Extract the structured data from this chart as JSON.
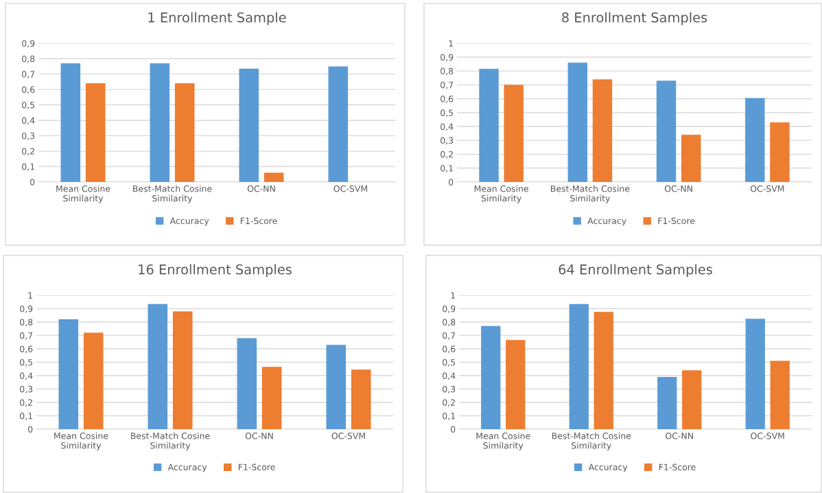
{
  "chart_data": [
    {
      "type": "bar",
      "title": "1 Enrollment Sample",
      "categories": [
        "Mean Cosine\nSimilarity",
        "Best-Match Cosine\nSimilarity",
        "OC-NN",
        "OC-SVM"
      ],
      "series": [
        {
          "name": "Accuracy",
          "color": "#5b9bd5",
          "values": [
            0.77,
            0.77,
            0.735,
            0.75
          ]
        },
        {
          "name": "F1-Score",
          "color": "#ed7d31",
          "values": [
            0.64,
            0.64,
            0.06,
            0
          ]
        }
      ],
      "ylim": [
        0,
        0.9
      ],
      "yticks": [
        0,
        {
          "value": 0.1,
          "label": "0,1"
        },
        {
          "value": 0.2,
          "label": "0,2"
        },
        {
          "value": 0.3,
          "label": "0,3"
        },
        {
          "value": 0.4,
          "label": "0,4"
        },
        {
          "value": 0.5,
          "label": "0,5"
        },
        {
          "value": 0.6,
          "label": "0,6"
        },
        {
          "value": 0.7,
          "label": "0,7"
        },
        {
          "value": 0.8,
          "label": "0,8"
        },
        {
          "value": 0.9,
          "label": "0,9"
        }
      ],
      "grid": "y",
      "legend": "bottom"
    },
    {
      "type": "bar",
      "title": "8 Enrollment Samples",
      "categories": [
        "Mean Cosine\nSimilarity",
        "Best-Match Cosine\nSimilarity",
        "OC-NN",
        "OC-SVM"
      ],
      "series": [
        {
          "name": "Accuracy",
          "color": "#5b9bd5",
          "values": [
            0.815,
            0.86,
            0.73,
            0.605
          ]
        },
        {
          "name": "F1-Score",
          "color": "#ed7d31",
          "values": [
            0.7,
            0.74,
            0.34,
            0.43
          ]
        }
      ],
      "ylim": [
        0,
        1
      ],
      "yticks": [
        0,
        {
          "value": 0.1,
          "label": "0,1"
        },
        {
          "value": 0.2,
          "label": "0,2"
        },
        {
          "value": 0.3,
          "label": "0,3"
        },
        {
          "value": 0.4,
          "label": "0,4"
        },
        {
          "value": 0.5,
          "label": "0,5"
        },
        {
          "value": 0.6,
          "label": "0,6"
        },
        {
          "value": 0.7,
          "label": "0,7"
        },
        {
          "value": 0.8,
          "label": "0,8"
        },
        {
          "value": 0.9,
          "label": "0,9"
        },
        1
      ],
      "grid": "y",
      "legend": "bottom"
    },
    {
      "type": "bar",
      "title": "16 Enrollment Samples",
      "categories": [
        "Mean Cosine\nSimilarity",
        "Best-Match Cosine\nSimilarity",
        "OC-NN",
        "OC-SVM"
      ],
      "series": [
        {
          "name": "Accuracy",
          "color": "#5b9bd5",
          "values": [
            0.82,
            0.935,
            0.68,
            0.63
          ]
        },
        {
          "name": "F1-Score",
          "color": "#ed7d31",
          "values": [
            0.72,
            0.88,
            0.465,
            0.445
          ]
        }
      ],
      "ylim": [
        0,
        1
      ],
      "yticks": [
        0,
        {
          "value": 0.1,
          "label": "0,1"
        },
        {
          "value": 0.2,
          "label": "0,2"
        },
        {
          "value": 0.3,
          "label": "0,3"
        },
        {
          "value": 0.4,
          "label": "0,4"
        },
        {
          "value": 0.5,
          "label": "0,5"
        },
        {
          "value": 0.6,
          "label": "0,6"
        },
        {
          "value": 0.7,
          "label": "0,7"
        },
        {
          "value": 0.8,
          "label": "0,8"
        },
        {
          "value": 0.9,
          "label": "0,9"
        },
        1
      ],
      "grid": "y",
      "legend": "bottom"
    },
    {
      "type": "bar",
      "title": "64 Enrollment Samples",
      "categories": [
        "Mean Cosine\nSimilarity",
        "Best-Match Cosine\nSimilarity",
        "OC-NN",
        "OC-SVM"
      ],
      "series": [
        {
          "name": "Accuracy",
          "color": "#5b9bd5",
          "values": [
            0.77,
            0.935,
            0.39,
            0.825
          ]
        },
        {
          "name": "F1-Score",
          "color": "#ed7d31",
          "values": [
            0.665,
            0.875,
            0.44,
            0.51
          ]
        }
      ],
      "ylim": [
        0,
        1
      ],
      "yticks": [
        0,
        {
          "value": 0.1,
          "label": "0,1"
        },
        {
          "value": 0.2,
          "label": "0,2"
        },
        {
          "value": 0.3,
          "label": "0,3"
        },
        {
          "value": 0.4,
          "label": "0,4"
        },
        {
          "value": 0.5,
          "label": "0,5"
        },
        {
          "value": 0.6,
          "label": "0,6"
        },
        {
          "value": 0.7,
          "label": "0,7"
        },
        {
          "value": 0.8,
          "label": "0,8"
        },
        {
          "value": 0.9,
          "label": "0,9"
        },
        1
      ],
      "grid": "y",
      "legend": "bottom"
    }
  ]
}
